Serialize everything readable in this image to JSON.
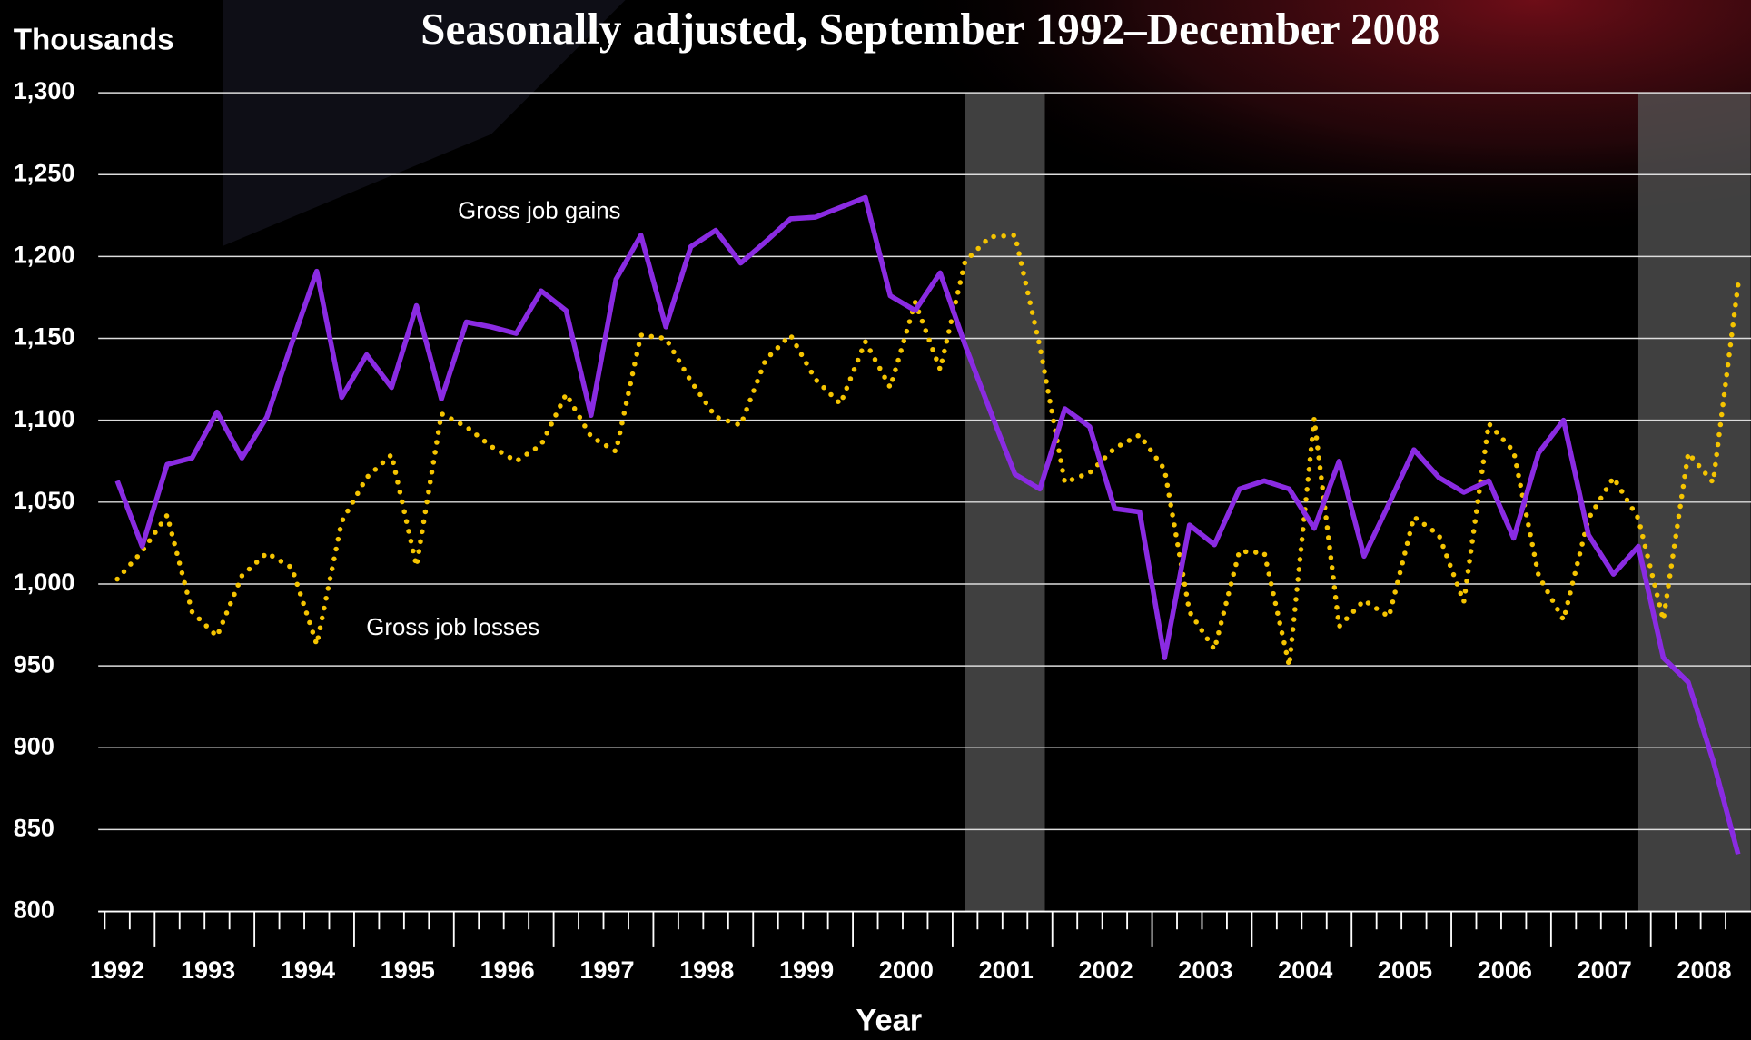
{
  "chart_data": {
    "type": "line",
    "title": "Seasonally adjusted, September 1992–December 2008",
    "y_axis_label": "Thousands",
    "x_axis_label": "Year",
    "categories": [
      "1992",
      null,
      null,
      null,
      "1993",
      null,
      null,
      null,
      "1994",
      null,
      null,
      null,
      "1995",
      null,
      null,
      null,
      "1996",
      null,
      null,
      null,
      "1997",
      null,
      null,
      null,
      "1998",
      null,
      null,
      null,
      "1999",
      null,
      null,
      null,
      "2000",
      null,
      null,
      null,
      "2001",
      null,
      null,
      null,
      "2002",
      null,
      null,
      null,
      "2003",
      null,
      null,
      null,
      "2004",
      null,
      null,
      null,
      "2005",
      null,
      null,
      null,
      "2006",
      null,
      null,
      null,
      "2007",
      null,
      null,
      null,
      "2008",
      null
    ],
    "series": [
      {
        "name": "Gross job gains",
        "color": "#8a2be2",
        "style": "solid",
        "values": [
          1063,
          1023,
          1073,
          1077,
          1105,
          1077,
          1102,
          1147,
          1191,
          1114,
          1140,
          1120,
          1170,
          1113,
          1160,
          1157,
          1153,
          1179,
          1167,
          1103,
          1186,
          1213,
          1157,
          1206,
          1216,
          1196,
          1209,
          1223,
          1224,
          1230,
          1236,
          1176,
          1167,
          1190,
          1146,
          1106,
          1067,
          1058,
          1107,
          1096,
          1046,
          1044,
          955,
          1036,
          1024,
          1058,
          1063,
          1058,
          1034,
          1075,
          1017,
          1049,
          1082,
          1065,
          1056,
          1063,
          1028,
          1080,
          1100,
          1030,
          1006,
          1023,
          955,
          940,
          892,
          835
        ]
      },
      {
        "name": "Gross job losses",
        "color": "#f5c400",
        "style": "dotted",
        "values": [
          1003,
          1020,
          1042,
          983,
          968,
          1005,
          1019,
          1010,
          963,
          1038,
          1065,
          1079,
          1011,
          1104,
          1096,
          1084,
          1075,
          1085,
          1116,
          1090,
          1081,
          1152,
          1150,
          1124,
          1102,
          1097,
          1137,
          1152,
          1125,
          1110,
          1148,
          1120,
          1172,
          1131,
          1197,
          1212,
          1213,
          1145,
          1062,
          1068,
          1083,
          1091,
          1070,
          983,
          960,
          1020,
          1019,
          950,
          1101,
          974,
          990,
          980,
          1041,
          1030,
          989,
          1098,
          1081,
          1005,
          978,
          1040,
          1065,
          1040,
          978,
          1080,
          1062,
          1183
        ]
      }
    ],
    "ylim": [
      800,
      1300
    ],
    "yticks": [
      {
        "value": 800,
        "label": "800"
      },
      {
        "value": 850,
        "label": "850"
      },
      {
        "value": 900,
        "label": "900"
      },
      {
        "value": 950,
        "label": "950"
      },
      {
        "value": 1000,
        "label": "1,000"
      },
      {
        "value": 1050,
        "label": "1,050"
      },
      {
        "value": 1100,
        "label": "1,100"
      },
      {
        "value": 1150,
        "label": "1,150"
      },
      {
        "value": 1200,
        "label": "1,200"
      },
      {
        "value": 1250,
        "label": "1,250"
      },
      {
        "value": 1300,
        "label": "1,300"
      }
    ],
    "shaded_regions": [
      [
        34,
        37.2
      ],
      [
        61,
        65.5
      ]
    ],
    "grid": true
  }
}
